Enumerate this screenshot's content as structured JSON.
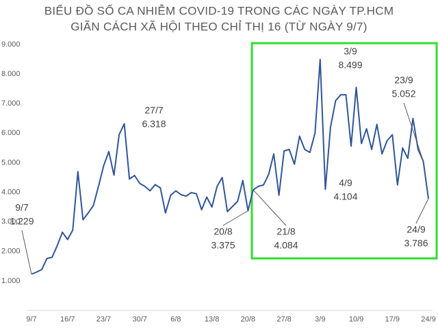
{
  "chart_data": {
    "type": "line",
    "title": [
      "BIỂU ĐỒ SỐ CA NHIỄM COVID-19 TRONG CÁC NGÀY TP.HCM",
      "GIÃN CÁCH XÃ HỘI THEO CHỈ THỊ 16 (TỪ NGÀY 9/7)"
    ],
    "categories": [
      "9/7",
      null,
      null,
      null,
      null,
      null,
      null,
      "16/7",
      null,
      null,
      null,
      null,
      null,
      null,
      "23/7",
      null,
      null,
      null,
      null,
      null,
      null,
      "30/7",
      null,
      null,
      null,
      null,
      null,
      null,
      "6/8",
      null,
      null,
      null,
      null,
      null,
      null,
      "13/8",
      null,
      null,
      null,
      null,
      null,
      null,
      "20/8",
      null,
      null,
      null,
      null,
      null,
      null,
      "27/8",
      null,
      null,
      null,
      null,
      null,
      null,
      "3/9",
      null,
      null,
      null,
      null,
      null,
      null,
      "10/9",
      null,
      null,
      null,
      null,
      null,
      null,
      "17/9",
      null,
      null,
      null,
      null,
      null,
      null,
      "24/9"
    ],
    "series": [
      {
        "color": "#2f5597",
        "values": [
          1229,
          1300,
          1390,
          1760,
          1800,
          2200,
          2650,
          2400,
          2720,
          4700,
          3070,
          3300,
          3550,
          4200,
          4900,
          5380,
          4580,
          5950,
          6318,
          4450,
          4570,
          4300,
          4200,
          4050,
          4260,
          4150,
          3300,
          3900,
          4050,
          3920,
          3870,
          3990,
          3950,
          3410,
          3840,
          3500,
          4200,
          4500,
          3350,
          3520,
          3700,
          4400,
          3375,
          4084,
          4200,
          4250,
          4600,
          5300,
          3900,
          5400,
          5450,
          4950,
          5900,
          5450,
          5350,
          6000,
          8499,
          4104,
          6200,
          7100,
          7300,
          7300,
          5560,
          7550,
          5650,
          6150,
          5450,
          6300,
          5300,
          5750,
          5950,
          4250,
          5500,
          5150,
          6500,
          5450,
          5052,
          3786
        ]
      }
    ],
    "ylim": [
      0,
      9000
    ],
    "yticks": [
      {
        "value": 1000,
        "label": "1.000"
      },
      {
        "value": 2000,
        "label": "2.000"
      },
      {
        "value": 3000,
        "label": "3.000"
      },
      {
        "value": 4000,
        "label": "4.000"
      },
      {
        "value": 5000,
        "label": "5.000"
      },
      {
        "value": 6000,
        "label": "6.000"
      },
      {
        "value": 7000,
        "label": "7.000"
      },
      {
        "value": 8000,
        "label": "8.000"
      },
      {
        "value": 9000,
        "label": "9.000"
      }
    ],
    "grid": false,
    "annotations": [
      {
        "date": "9/7",
        "value": 1229,
        "label": "1.229"
      },
      {
        "date": "27/7",
        "value": 6318,
        "label": "6.318"
      },
      {
        "date": "20/8",
        "value": 3375,
        "label": "3.375"
      },
      {
        "date": "21/8",
        "value": 4084,
        "label": "4.084"
      },
      {
        "date": "3/9",
        "value": 8499,
        "label": "8.499"
      },
      {
        "date": "4/9",
        "value": 4104,
        "label": "4.104"
      },
      {
        "date": "23/9",
        "value": 5052,
        "label": "5.052"
      },
      {
        "date": "24/9",
        "value": 3786,
        "label": "3.786"
      }
    ]
  }
}
